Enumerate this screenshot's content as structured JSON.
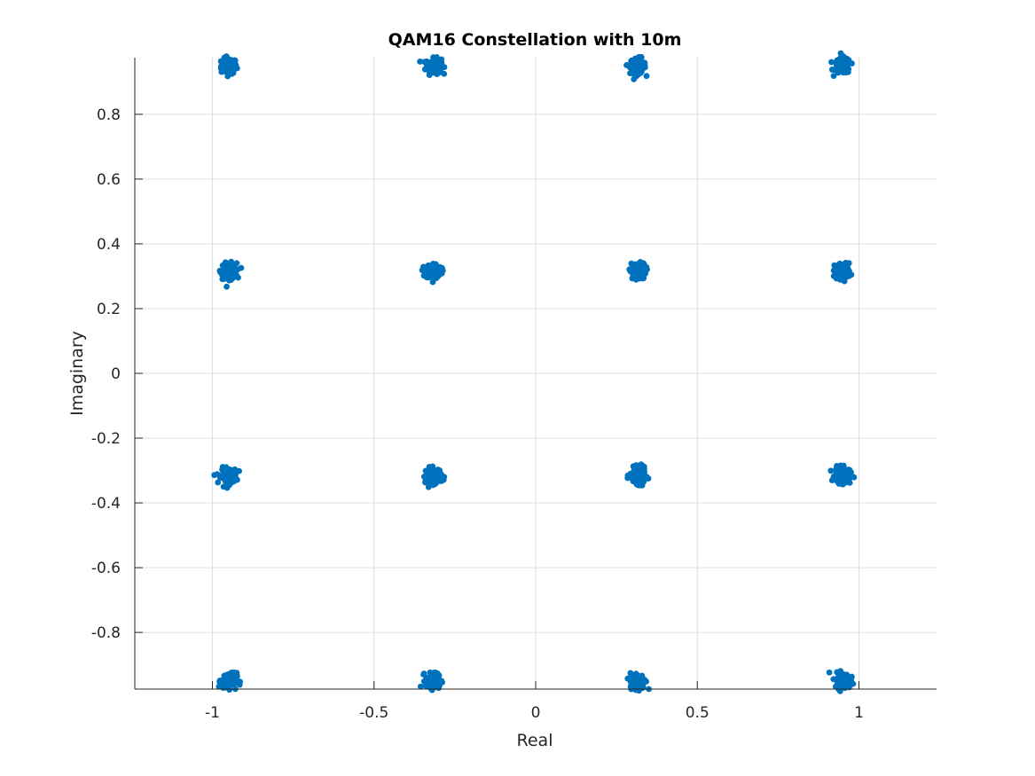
{
  "chart_data": {
    "type": "scatter",
    "title": "QAM16 Constellation with 10m",
    "xlabel": "Real",
    "ylabel": "Imaginary",
    "xlim": [
      -1.24,
      1.24
    ],
    "ylim": [
      -0.975,
      0.975
    ],
    "grid": true,
    "x_ticks": [
      -1,
      -0.5,
      0,
      0.5,
      1
    ],
    "x_tick_labels": [
      "-1",
      "-0.5",
      "0",
      "0.5",
      "1"
    ],
    "y_ticks": [
      -0.8,
      -0.6,
      -0.4,
      -0.2,
      0,
      0.2,
      0.4,
      0.6,
      0.8
    ],
    "y_tick_labels": [
      "-0.8",
      "-0.6",
      "-0.4",
      "-0.2",
      "0",
      "0.2",
      "0.4",
      "0.6",
      "0.8"
    ],
    "marker_color": "#0072BD",
    "cluster_spread": 0.012,
    "points_per_cluster": 120,
    "cluster_centers": [
      {
        "x": -0.949,
        "y": 0.949
      },
      {
        "x": -0.316,
        "y": 0.949
      },
      {
        "x": 0.316,
        "y": 0.949
      },
      {
        "x": 0.949,
        "y": 0.949
      },
      {
        "x": -0.949,
        "y": 0.316
      },
      {
        "x": -0.316,
        "y": 0.316
      },
      {
        "x": 0.316,
        "y": 0.316
      },
      {
        "x": 0.949,
        "y": 0.316
      },
      {
        "x": -0.949,
        "y": -0.316
      },
      {
        "x": -0.316,
        "y": -0.316
      },
      {
        "x": 0.316,
        "y": -0.316
      },
      {
        "x": 0.949,
        "y": -0.316
      },
      {
        "x": -0.949,
        "y": -0.949
      },
      {
        "x": -0.316,
        "y": -0.949
      },
      {
        "x": 0.316,
        "y": -0.949
      },
      {
        "x": 0.949,
        "y": -0.949
      }
    ]
  }
}
